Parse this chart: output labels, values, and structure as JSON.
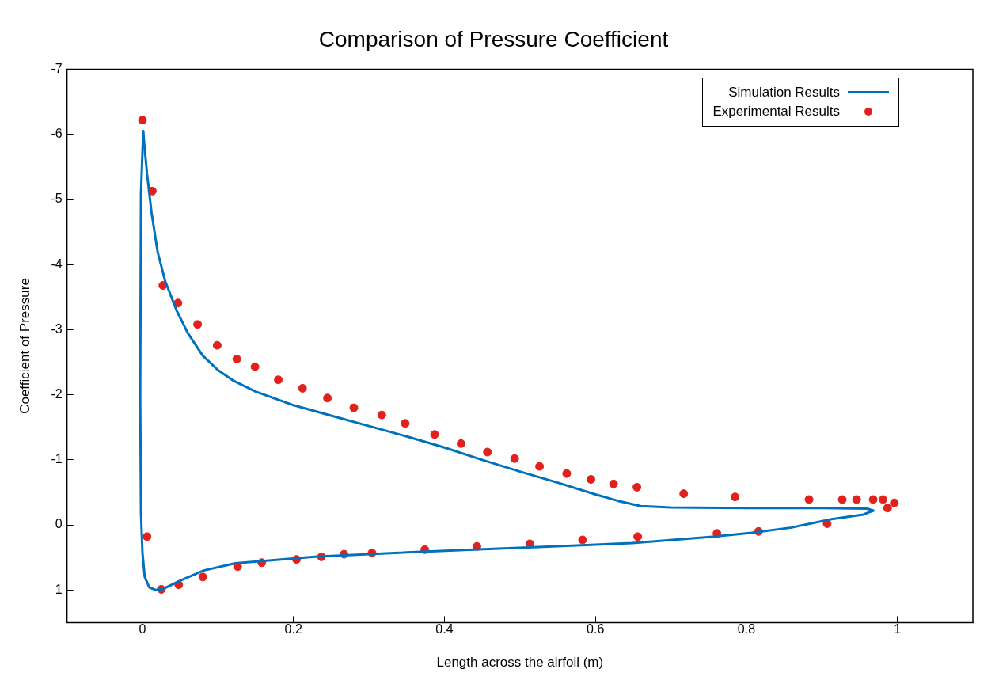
{
  "chart_data": {
    "type": "scatter",
    "title": "Comparison of Pressure Coefficient",
    "xlabel": "Length across the airfoil (m)",
    "ylabel": "Coefficient of Pressure",
    "xlim": [
      -0.1,
      1.1
    ],
    "xticks": [
      0,
      0.2,
      0.4,
      0.6,
      0.8,
      1
    ],
    "ylim": [
      1.5,
      -7
    ],
    "yticks": [
      -7,
      -6,
      -5,
      -4,
      -3,
      -2,
      -1,
      0,
      1
    ],
    "grid": false,
    "legend": "top right",
    "series": [
      {
        "name": "Simulation Results",
        "type": "line",
        "line_style": "solid",
        "color": "#0072bd",
        "x": [
          0.968,
          0.96,
          0.9,
          0.8,
          0.7,
          0.66,
          0.63,
          0.6,
          0.55,
          0.5,
          0.45,
          0.4,
          0.35,
          0.3,
          0.25,
          0.2,
          0.15,
          0.12,
          0.1,
          0.08,
          0.06,
          0.045,
          0.03,
          0.02,
          0.012,
          0.006,
          0.002,
          0.001
        ],
        "values": [
          -0.22,
          -0.25,
          -0.26,
          -0.26,
          -0.27,
          -0.29,
          -0.37,
          -0.47,
          -0.65,
          -0.82,
          -1.0,
          -1.19,
          -1.36,
          -1.52,
          -1.68,
          -1.84,
          -2.05,
          -2.22,
          -2.38,
          -2.6,
          -2.95,
          -3.3,
          -3.75,
          -4.2,
          -4.8,
          -5.4,
          -5.9,
          -6.05
        ]
      },
      {
        "type": "line",
        "line_style": "solid",
        "color": "#0072bd",
        "x": [
          0.001,
          -0.002,
          -0.003,
          -0.002,
          0,
          0.003,
          0.009,
          0.018,
          0.028,
          0.049,
          0.081,
          0.123,
          0.228,
          0.334,
          0.439,
          0.544,
          0.649,
          0.755,
          0.807,
          0.86,
          0.913,
          0.955,
          0.968
        ],
        "values": [
          -6.05,
          -5.09,
          -2.0,
          -0.18,
          0.43,
          0.8,
          0.96,
          1.0,
          0.98,
          0.86,
          0.7,
          0.59,
          0.49,
          0.43,
          0.38,
          0.33,
          0.28,
          0.18,
          0.12,
          0.04,
          -0.09,
          -0.16,
          -0.22
        ]
      },
      {
        "name": "Experimental Results",
        "type": "scatter",
        "marker": "circle",
        "color": "#e3211c",
        "x": [
          0.0,
          0.013,
          0.027,
          0.047,
          0.073,
          0.099,
          0.125,
          0.149,
          0.18,
          0.212,
          0.245,
          0.28,
          0.317,
          0.348,
          0.387,
          0.422,
          0.457,
          0.493,
          0.526,
          0.562,
          0.594,
          0.624,
          0.655,
          0.717,
          0.785,
          0.883,
          0.927,
          0.946,
          0.968,
          0.981,
          0.996,
          0.987,
          0.907,
          0.816,
          0.761,
          0.656,
          0.583,
          0.513,
          0.443,
          0.374,
          0.304,
          0.267,
          0.237,
          0.204,
          0.158,
          0.126,
          0.08,
          0.048,
          0.025,
          0.006
        ],
        "values": [
          -6.22,
          -5.13,
          -3.68,
          -3.41,
          -3.08,
          -2.76,
          -2.55,
          -2.43,
          -2.23,
          -2.1,
          -1.95,
          -1.8,
          -1.69,
          -1.56,
          -1.39,
          -1.25,
          -1.12,
          -1.02,
          -0.9,
          -0.79,
          -0.7,
          -0.63,
          -0.58,
          -0.48,
          -0.43,
          -0.39,
          -0.39,
          -0.39,
          -0.39,
          -0.39,
          -0.34,
          -0.26,
          -0.02,
          0.1,
          0.13,
          0.18,
          0.23,
          0.29,
          0.33,
          0.38,
          0.43,
          0.45,
          0.49,
          0.53,
          0.58,
          0.64,
          0.8,
          0.92,
          0.99,
          0.18
        ]
      }
    ]
  }
}
